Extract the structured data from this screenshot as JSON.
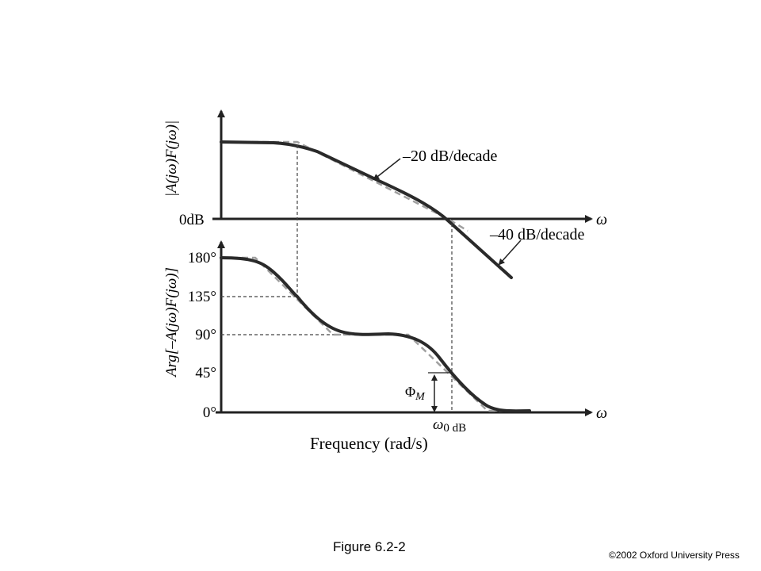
{
  "magnitude_plot": {
    "y_label": "|A(jω)F(jω)|",
    "zero_label": "0dB",
    "x_axis_symbol": "ω",
    "slope_label_1": "–20 dB/decade",
    "slope_label_2": "–40 dB/decade"
  },
  "phase_plot": {
    "y_label": "Arg[–A(jω)F(jω)]",
    "ticks": [
      "180°",
      "135°",
      "90°",
      "45°",
      "0°"
    ],
    "x_axis_symbol": "ω",
    "phase_margin_symbol": "Φ",
    "phase_margin_subscript": "M",
    "crossover_symbol": "ω",
    "crossover_subscript": "0 dB"
  },
  "frequency_label": "Frequency (rad/s)",
  "caption": "Figure 6.2-2",
  "copyright": "©2002 Oxford University Press",
  "colors": {
    "curve": "#2a2a2a",
    "asymptote": "#a0a0a0",
    "guide": "#444444"
  }
}
